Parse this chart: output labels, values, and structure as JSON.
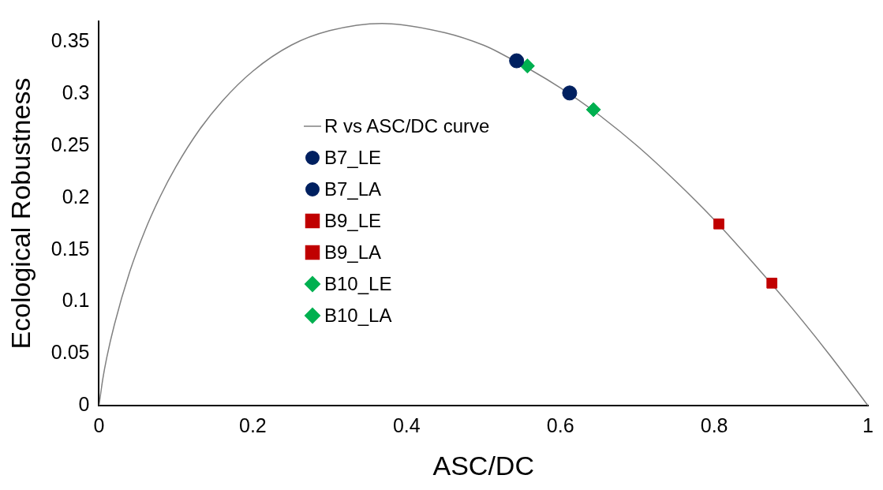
{
  "chart_data": {
    "type": "scatter",
    "xlabel": "ASC/DC",
    "ylabel": "Ecological Robustness",
    "xlim": [
      0,
      1
    ],
    "ylim": [
      0,
      0.37
    ],
    "xticks": [
      0,
      0.2,
      0.4,
      0.6,
      0.8,
      1
    ],
    "yticks": [
      0,
      0.05,
      0.1,
      0.15,
      0.2,
      0.25,
      0.3,
      0.35
    ],
    "grid": false,
    "legend": "left",
    "series": [
      {
        "name": "R vs ASC/DC curve",
        "type": "line",
        "marker": "none",
        "color": "#808080",
        "x": [
          0,
          0.005,
          0.01,
          0.02,
          0.04,
          0.06,
          0.08,
          0.1,
          0.13,
          0.16,
          0.2,
          0.25,
          0.3,
          0.368,
          0.45,
          0.5,
          0.52,
          0.6,
          0.65,
          0.7,
          0.75,
          0.8,
          0.85,
          0.9,
          0.95,
          1
        ],
        "values": [
          0,
          0.026,
          0.046,
          0.078,
          0.129,
          0.169,
          0.202,
          0.23,
          0.265,
          0.293,
          0.322,
          0.347,
          0.361,
          0.368,
          0.359,
          0.347,
          0.34,
          0.306,
          0.28,
          0.25,
          0.216,
          0.179,
          0.138,
          0.095,
          0.049,
          0
        ]
      },
      {
        "name": "B7_LE",
        "marker": "circle",
        "color": "#002060",
        "x": [
          0.543
        ],
        "values": [
          0.332
        ]
      },
      {
        "name": "B7_LA",
        "marker": "circle",
        "color": "#002060",
        "x": [
          0.612
        ],
        "values": [
          0.301
        ]
      },
      {
        "name": "B9_LE",
        "marker": "square",
        "color": "#c00000",
        "x": [
          0.806
        ],
        "values": [
          0.175
        ]
      },
      {
        "name": "B9_LA",
        "marker": "square",
        "color": "#c00000",
        "x": [
          0.875
        ],
        "values": [
          0.118
        ]
      },
      {
        "name": "B10_LE",
        "marker": "diamond",
        "color": "#00b050",
        "x": [
          0.557
        ],
        "values": [
          0.327
        ]
      },
      {
        "name": "B10_LA",
        "marker": "diamond",
        "color": "#00b050",
        "x": [
          0.643
        ],
        "values": [
          0.285
        ]
      }
    ]
  }
}
